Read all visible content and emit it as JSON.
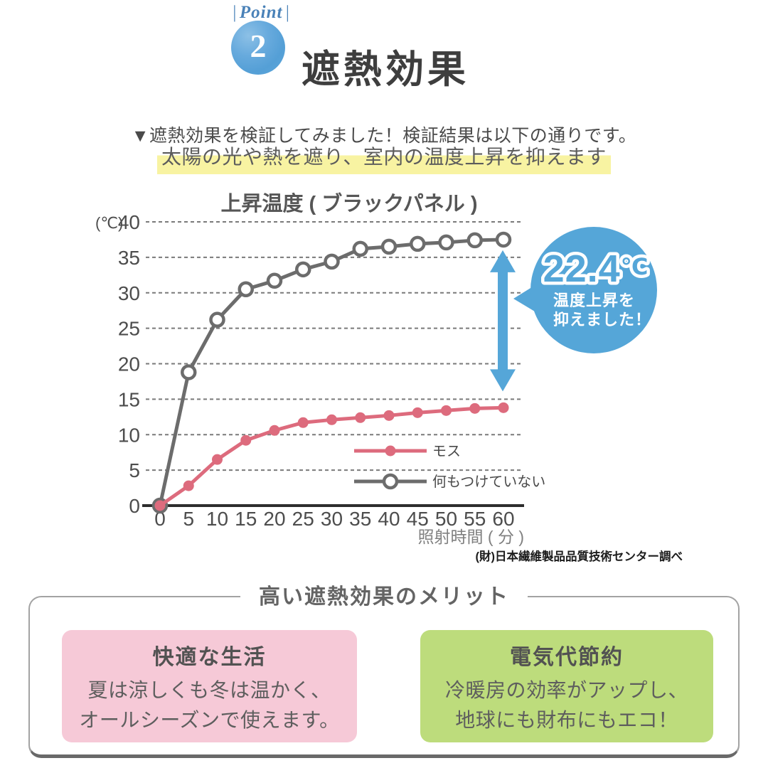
{
  "header": {
    "point_bar": "|",
    "point_label": "Point",
    "point_number": "2",
    "title": "遮熱効果"
  },
  "intro": {
    "text": "▼遮熱効果を検証してみました！検証結果は以下の通りです。"
  },
  "highlight": {
    "text": "太陽の光や熱を遮り、室内の温度上昇を抑えます"
  },
  "chart_data": {
    "type": "line",
    "title": "上昇温度 ( ブラックパネル )",
    "y_unit_label": "(℃)",
    "xlabel": "照射時間 ( 分 )",
    "x": [
      0,
      5,
      10,
      15,
      20,
      25,
      30,
      35,
      40,
      45,
      50,
      55,
      60
    ],
    "ylim": [
      0,
      40
    ],
    "ytick_step": 5,
    "grid": "dashed-horizontal",
    "legend_position": "inside-right-bottom",
    "series": [
      {
        "name": "モス",
        "color": "#dd6b7d",
        "marker": "filled",
        "values": [
          0,
          2.8,
          6.5,
          9.2,
          10.6,
          11.7,
          12.1,
          12.4,
          12.7,
          13.1,
          13.4,
          13.7,
          13.8
        ]
      },
      {
        "name": "何もつけていない",
        "color": "#6c6c6c",
        "marker": "open",
        "values": [
          0,
          18.8,
          26.2,
          30.5,
          31.7,
          33.3,
          34.4,
          36.2,
          36.5,
          36.9,
          37.1,
          37.4,
          37.5
        ]
      }
    ],
    "annotation": {
      "value": "22.4",
      "unit": "℃",
      "lines": [
        "温度上昇を",
        "抑えました！"
      ],
      "color": "#55a6d8",
      "arrow_span": [
        16.1,
        36.0
      ]
    },
    "source": "(財)日本繊維製品品質技術センター調べ"
  },
  "merits": {
    "title": "高い遮熱効果のメリット",
    "items": [
      {
        "heading": "快適な生活",
        "lines": [
          "夏は涼しくも冬は温かく、",
          "オールシーズンで使えます。"
        ],
        "bg": "#f6c9d7"
      },
      {
        "heading": "電気代節約",
        "lines": [
          "冷暖房の効率がアップし、",
          "地球にも財布にもエコ！"
        ],
        "bg": "#bddc7c"
      }
    ]
  },
  "colors": {
    "accent_blue": "#55a6d8",
    "highlight_yellow": "#f8f3a2"
  }
}
